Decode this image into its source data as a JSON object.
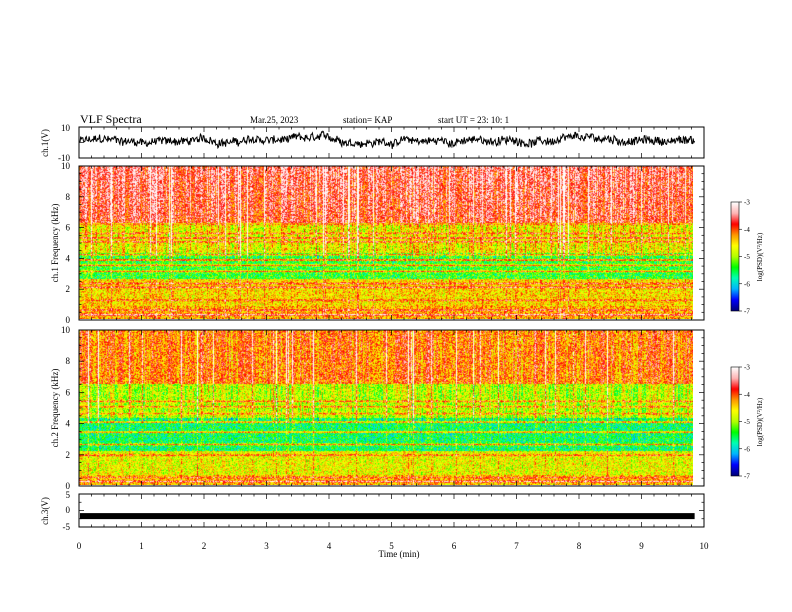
{
  "chart_data": [
    {
      "type": "line",
      "title": "VLF Spectra",
      "date": "Mar.25, 2023",
      "station": "station= KAP",
      "start_ut": "start  UT  =   23: 10: 1",
      "ylabel": "ch.1(V)",
      "ylim": [
        -10,
        10
      ],
      "yticks": [
        "10",
        "-10"
      ],
      "xlim": [
        0,
        10
      ],
      "grid": false,
      "waveform": {
        "description_values_range": [
          -5,
          5
        ],
        "seed": 11,
        "base_level": 1
      }
    },
    {
      "type": "heatmap",
      "ylabel": "ch.1 Frequency (kHz)",
      "ylim": [
        0,
        10
      ],
      "yticks": [
        "0",
        "2",
        "4",
        "6",
        "8",
        "10"
      ],
      "xlim": [
        0,
        10
      ],
      "data_extent_min": 9.85,
      "colorbar": {
        "label": "log(PSD)(V²/Hz)",
        "range": [
          -7,
          -3
        ],
        "ticks": [
          "-3",
          "-4",
          "-5",
          "-6",
          "-7"
        ],
        "colors": [
          "#00007a",
          "#0000ff",
          "#00b4ff",
          "#00ffb4",
          "#00ff00",
          "#b4ff00",
          "#ffff00",
          "#ff9600",
          "#ff0000",
          "#ffb4b4",
          "#ffffff"
        ]
      },
      "bands_khz": [
        {
          "freq": 0.25,
          "level": -3.2
        },
        {
          "freq": 0.55,
          "level": -3.6
        },
        {
          "freq": 1.2,
          "level": -3.8
        },
        {
          "freq": 2.05,
          "level": -3.5
        },
        {
          "freq": 2.3,
          "level": -3.7
        },
        {
          "freq": 3.1,
          "level": -3.9
        },
        {
          "freq": 3.5,
          "level": -3.8
        },
        {
          "freq": 3.85,
          "level": -3.4
        },
        {
          "freq": 4.2,
          "level": -3.9
        },
        {
          "freq": 5.05,
          "level": -3.6
        },
        {
          "freq": 5.3,
          "level": -3.5
        },
        {
          "freq": 5.6,
          "level": -3.8
        },
        {
          "freq": 6.2,
          "level": -4.0
        }
      ]
    },
    {
      "type": "heatmap",
      "ylabel": "ch.2 Frequency (kHz)",
      "ylim": [
        0,
        10
      ],
      "yticks": [
        "0",
        "2",
        "4",
        "6",
        "8",
        "10"
      ],
      "xlim": [
        0,
        10
      ],
      "data_extent_min": 9.85,
      "colorbar": {
        "label": "log(PSD)(V²/Hz)",
        "range": [
          -7,
          -3
        ],
        "ticks": [
          "-3",
          "-4",
          "-5",
          "-6",
          "-7"
        ],
        "colors": [
          "#00007a",
          "#0000ff",
          "#00b4ff",
          "#00ffb4",
          "#00ff00",
          "#b4ff00",
          "#ffff00",
          "#ff9600",
          "#ff0000",
          "#ffb4b4",
          "#ffffff"
        ]
      },
      "bands_khz": [
        {
          "freq": 0.2,
          "level": -3.3
        },
        {
          "freq": 0.45,
          "level": -3.8
        },
        {
          "freq": 1.9,
          "level": -3.9
        },
        {
          "freq": 2.6,
          "level": -4.0
        },
        {
          "freq": 3.4,
          "level": -3.9
        },
        {
          "freq": 4.05,
          "level": -3.9
        },
        {
          "freq": 4.6,
          "level": -4.1
        },
        {
          "freq": 5.05,
          "level": -4.0
        },
        {
          "freq": 5.4,
          "level": -3.9
        }
      ]
    },
    {
      "type": "line",
      "ylabel": "ch.3(V)",
      "ylim": [
        -5,
        5
      ],
      "yticks": [
        "5",
        "0",
        "-5"
      ],
      "xlim": [
        0,
        10
      ],
      "xlabel": "Time  (min)",
      "xticks": [
        "0",
        "1",
        "2",
        "3",
        "4",
        "5",
        "6",
        "7",
        "8",
        "9",
        "10"
      ],
      "x_end_data": 9.85,
      "y_value": -1.7
    }
  ]
}
